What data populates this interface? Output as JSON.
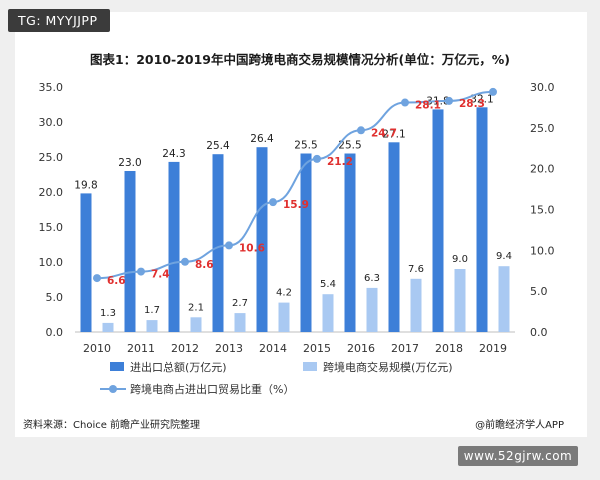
{
  "badge": {
    "label": "TG: MYYJJPP"
  },
  "footer": {
    "source": "资料来源：Choice 前瞻产业研究院整理",
    "credit": "@前瞻经济学人APP",
    "site": "www.52gjrw.com"
  },
  "colors": {
    "bar1": "#3d7fd8",
    "bar2": "#a9c9f2",
    "line": "#6fa3df",
    "line_label": "#e0302f",
    "axis_text": "#333333"
  },
  "chart_data": {
    "type": "bar",
    "title": "图表1：2010-2019年中国跨境电商交易规模情况分析(单位：万亿元，%)",
    "categories": [
      "2010",
      "2011",
      "2012",
      "2013",
      "2014",
      "2015",
      "2016",
      "2017",
      "2018",
      "2019"
    ],
    "series": [
      {
        "name": "进出口总额(万亿元)",
        "type": "bar",
        "axis": "left",
        "values": [
          19.8,
          23.0,
          24.3,
          25.4,
          26.4,
          25.5,
          25.5,
          27.1,
          31.8,
          32.1
        ]
      },
      {
        "name": "跨境电商交易规模(万亿元)",
        "type": "bar",
        "axis": "left",
        "values": [
          1.3,
          1.7,
          2.1,
          2.7,
          4.2,
          5.4,
          6.3,
          7.6,
          9.0,
          9.4
        ]
      },
      {
        "name": "跨境电商占进出口贸易比重（%）",
        "type": "line",
        "axis": "right",
        "values": [
          6.6,
          7.4,
          8.6,
          10.6,
          15.9,
          21.2,
          24.7,
          28.1,
          28.3,
          29.4
        ]
      }
    ],
    "y_left": {
      "min": 0,
      "max": 35,
      "step": 5,
      "ticks": [
        "0.0",
        "5.0",
        "10.0",
        "15.0",
        "20.0",
        "25.0",
        "30.0",
        "35.0"
      ]
    },
    "y_right": {
      "min": 0,
      "max": 30,
      "step": 5,
      "ticks": [
        "0.0",
        "5.0",
        "10.0",
        "15.0",
        "20.0",
        "25.0",
        "30.0"
      ]
    },
    "line_labels": [
      "6.6",
      "7.4",
      "8.6",
      "10.6",
      "15.9",
      "21.2",
      "24.7",
      "28.1",
      "28.3",
      ""
    ],
    "bar1_labels": [
      "19.8",
      "23.0",
      "24.3",
      "25.4",
      "26.4",
      "25.5",
      "25.5",
      "27.1",
      "31.8",
      "32.1"
    ],
    "bar2_labels": [
      "1.3",
      "1.7",
      "2.1",
      "2.7",
      "4.2",
      "5.4",
      "6.3",
      "7.6",
      "9.0",
      "9.4"
    ],
    "grid": false,
    "legend_position": "bottom"
  }
}
